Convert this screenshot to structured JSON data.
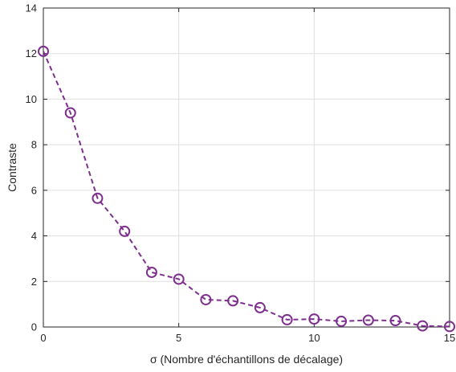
{
  "chart_data": {
    "type": "line",
    "title": "",
    "xlabel": "σ (Nombre d'échantillons de décalage)",
    "ylabel": "Contraste",
    "xlim": [
      0,
      15
    ],
    "ylim": [
      0,
      14
    ],
    "xticks": [
      "0",
      "5",
      "10",
      "15"
    ],
    "yticks": [
      "0",
      "2",
      "4",
      "6",
      "8",
      "10",
      "12",
      "14"
    ],
    "grid": true,
    "legend": "none",
    "series": [
      {
        "color": "#7E2F8E",
        "line_style": "dashed",
        "marker": "circle",
        "x": [
          0,
          1,
          2,
          3,
          4,
          5,
          6,
          7,
          8,
          9,
          10,
          11,
          12,
          13,
          14,
          15
        ],
        "y": [
          12.1,
          9.4,
          5.65,
          4.2,
          2.4,
          2.1,
          1.2,
          1.15,
          0.85,
          0.32,
          0.35,
          0.25,
          0.3,
          0.28,
          0.05,
          0.02
        ]
      }
    ]
  }
}
